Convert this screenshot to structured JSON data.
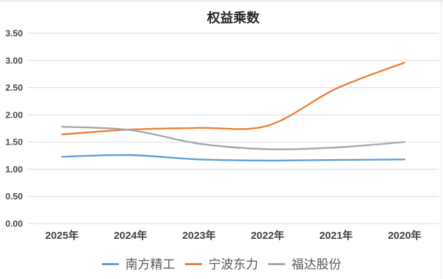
{
  "window": {
    "top_edge_color": "#f1f1f1",
    "right_edge_color": "#e7e7e7",
    "background": "#ffffff"
  },
  "chart_data": {
    "type": "line",
    "title": "权益乘数",
    "categories": [
      "2025年",
      "2024年",
      "2023年",
      "2022年",
      "2021年",
      "2020年"
    ],
    "series": [
      {
        "name": "南方精工",
        "color": "#5B9BD5",
        "values": [
          1.23,
          1.26,
          1.18,
          1.16,
          1.17,
          1.18
        ]
      },
      {
        "name": "宁波东力",
        "color": "#ED7D31",
        "values": [
          1.64,
          1.73,
          1.76,
          1.8,
          2.48,
          2.96
        ]
      },
      {
        "name": "福达股份",
        "color": "#A5A5A5",
        "values": [
          1.78,
          1.72,
          1.47,
          1.37,
          1.4,
          1.5
        ]
      }
    ],
    "xlabel": "",
    "ylabel": "",
    "ylim": [
      0,
      3.5
    ],
    "y_tick_step": 0.5,
    "y_tick_labels": [
      "0.00",
      "0.50",
      "1.00",
      "1.50",
      "2.00",
      "2.50",
      "3.00",
      "3.50"
    ],
    "grid": true,
    "grid_color": "#d9d9d9",
    "line_smoothing": true,
    "legend_position": "bottom"
  }
}
